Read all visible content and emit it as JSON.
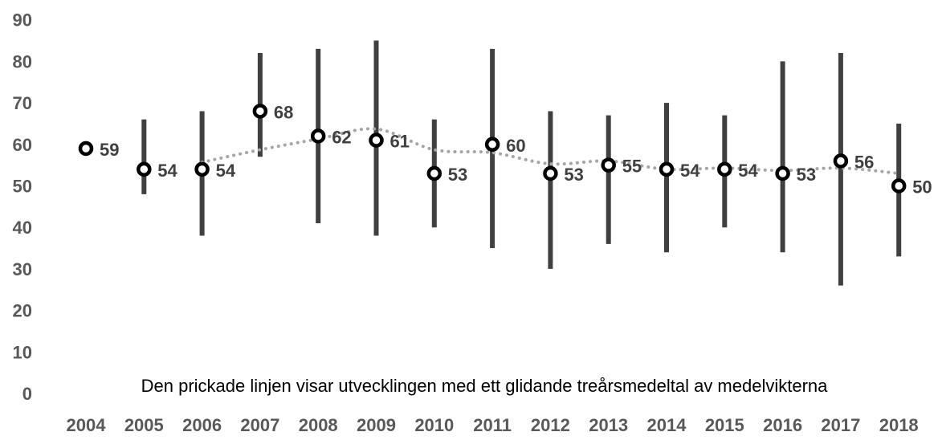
{
  "chart_data": {
    "type": "scatter",
    "title": "",
    "xlabel": "",
    "ylabel": "",
    "categories": [
      "2004",
      "2005",
      "2006",
      "2007",
      "2008",
      "2009",
      "2010",
      "2011",
      "2012",
      "2013",
      "2014",
      "2015",
      "2016",
      "2017",
      "2018"
    ],
    "series": [
      {
        "values": [
          59,
          54,
          54,
          68,
          62,
          61,
          53,
          60,
          53,
          55,
          54,
          54,
          53,
          56,
          50
        ],
        "labels": [
          "59",
          "54",
          "54",
          "68",
          "62",
          "61",
          "53",
          "60",
          "53",
          "55",
          "54",
          "54",
          "53",
          "56",
          "50"
        ]
      }
    ],
    "ranges": [
      null,
      [
        48,
        66
      ],
      [
        38,
        68
      ],
      [
        57,
        82
      ],
      [
        41,
        83
      ],
      [
        38,
        85
      ],
      [
        40,
        66
      ],
      [
        35,
        83
      ],
      [
        30,
        68
      ],
      [
        36,
        67
      ],
      [
        34,
        70
      ],
      [
        40,
        67
      ],
      [
        34,
        80
      ],
      [
        26,
        82
      ],
      [
        33,
        65
      ]
    ],
    "moving_average": [
      null,
      null,
      55.7,
      58.7,
      61.3,
      63.7,
      58.7,
      58.0,
      55.3,
      56.0,
      54.0,
      54.3,
      53.7,
      54.3,
      53.0
    ],
    "ylim": [
      0,
      90
    ],
    "yticks": [
      "0",
      "10",
      "20",
      "30",
      "40",
      "50",
      "60",
      "70",
      "80",
      "90"
    ],
    "grid": false,
    "legend": "none",
    "annotation": "Den prickade linjen visar utvecklingen med ett glidande treårsmedeltal av medelvikterna",
    "colors": {
      "range_bar": "#404040",
      "marker_stroke": "#000000",
      "marker_fill": "#ffffff",
      "moving_average": "#a6a6a6",
      "label_text": "#404040",
      "axis_text": "#595959"
    }
  }
}
